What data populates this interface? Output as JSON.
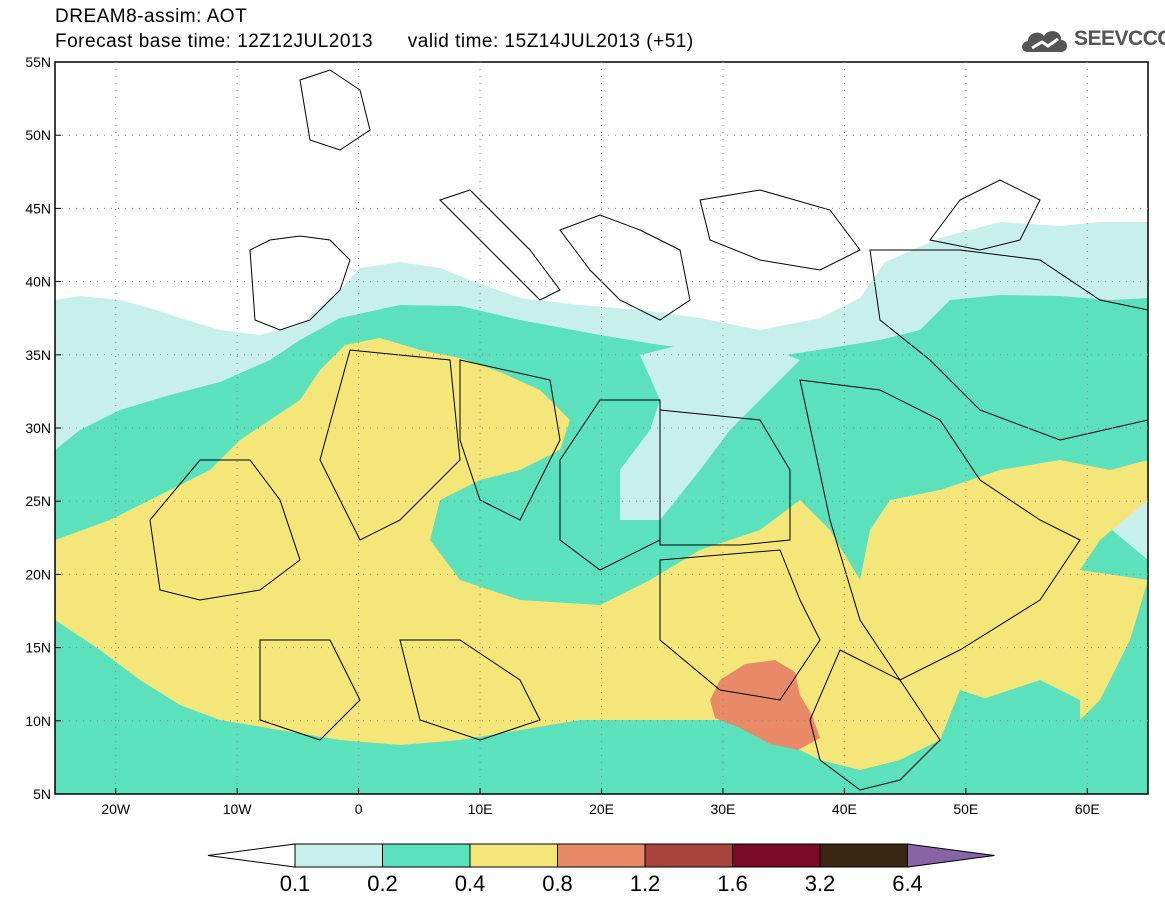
{
  "header": {
    "title": "DREAM8-assim: AOT",
    "base_time": "Forecast base time: 12Z12JUL2013",
    "valid_time": "valid time: 15Z14JUL2013 (+51)"
  },
  "logo": {
    "text": "SEEVCCC",
    "icon": "cloud-logo-icon"
  },
  "map": {
    "lat_labels": [
      "55N",
      "50N",
      "45N",
      "40N",
      "35N",
      "30N",
      "25N",
      "20N",
      "15N",
      "10N",
      "5N"
    ],
    "lon_labels": [
      "20W",
      "10W",
      "0",
      "10E",
      "20E",
      "30E",
      "40E",
      "50E",
      "60E"
    ],
    "colors": {
      "c01": "#c8f0ea",
      "c02": "#5ce1bd",
      "c04": "#f5e67a",
      "c08": "#e88a67",
      "border": "#000000"
    }
  },
  "colorbar": {
    "labels": [
      "0.1",
      "0.2",
      "0.4",
      "0.8",
      "1.2",
      "1.6",
      "3.2",
      "6.4"
    ],
    "colors": [
      "#ffffff",
      "#c8f0ea",
      "#5ce1bd",
      "#f5e67a",
      "#e88a67",
      "#a7443b",
      "#7a0a26",
      "#3b2614",
      "#8863a8"
    ]
  }
}
